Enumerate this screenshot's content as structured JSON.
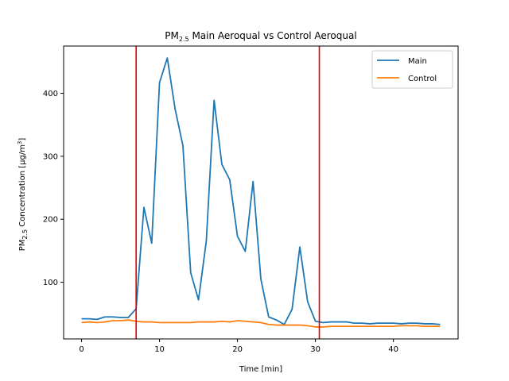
{
  "chart_data": {
    "type": "line",
    "title": "PM2.5 Main Aeroqual vs Control Aeroqual",
    "title_parts": {
      "prefix": "PM",
      "subscript": "2.5",
      "suffix": " Main Aeroqual vs Control Aeroqual"
    },
    "xlabel": "Time [min]",
    "ylabel": "PM2.5 Concentration [μg/m3]",
    "ylabel_parts": {
      "prefix": "PM",
      "subscript": "2.5",
      "middle": " Concentration [μg/m",
      "superscript": "3",
      "suffix": "]"
    },
    "xlim": [
      -2.3,
      48.3
    ],
    "ylim": [
      10,
      475
    ],
    "xticks": [
      0,
      10,
      20,
      30,
      40
    ],
    "yticks": [
      100,
      200,
      300,
      400
    ],
    "grid": false,
    "legend_position": "top-right",
    "series": [
      {
        "name": "Main",
        "color": "#1f77b4",
        "x": [
          0,
          1,
          2,
          3,
          4,
          5,
          6,
          7,
          8,
          9,
          10,
          11,
          12,
          13,
          14,
          15,
          16,
          17,
          18,
          19,
          20,
          21,
          22,
          23,
          24,
          25,
          26,
          27,
          28,
          29,
          30,
          31,
          32,
          33,
          34,
          35,
          36,
          37,
          38,
          39,
          40,
          41,
          42,
          43,
          44,
          45,
          46
        ],
        "values": [
          42,
          42,
          41,
          45,
          45,
          44,
          44,
          58,
          219,
          162,
          417,
          456,
          375,
          317,
          115,
          72,
          165,
          389,
          287,
          263,
          173,
          149,
          260,
          105,
          45,
          40,
          33,
          57,
          156,
          69,
          38,
          36,
          37,
          37,
          37,
          35,
          35,
          34,
          35,
          35,
          35,
          34,
          35,
          35,
          34,
          34,
          33
        ]
      },
      {
        "name": "Control",
        "color": "#ff7f0e",
        "x": [
          0,
          1,
          2,
          3,
          4,
          5,
          6,
          7,
          8,
          9,
          10,
          11,
          12,
          13,
          14,
          15,
          16,
          17,
          18,
          19,
          20,
          21,
          22,
          23,
          24,
          25,
          26,
          27,
          28,
          29,
          30,
          31,
          32,
          33,
          34,
          35,
          36,
          37,
          38,
          39,
          40,
          41,
          42,
          43,
          44,
          45,
          46
        ],
        "values": [
          36,
          37,
          36,
          37,
          39,
          39,
          40,
          38,
          37,
          37,
          36,
          36,
          36,
          36,
          36,
          37,
          37,
          37,
          38,
          37,
          39,
          38,
          37,
          36,
          33,
          32,
          32,
          32,
          32,
          31,
          29,
          29,
          30,
          30,
          30,
          30,
          30,
          30,
          30,
          30,
          30,
          31,
          31,
          31,
          30,
          30,
          30
        ]
      }
    ],
    "vertical_lines": [
      {
        "x": 7.0,
        "color": "#e00000"
      },
      {
        "x": 30.5,
        "color": "#e00000"
      }
    ]
  }
}
